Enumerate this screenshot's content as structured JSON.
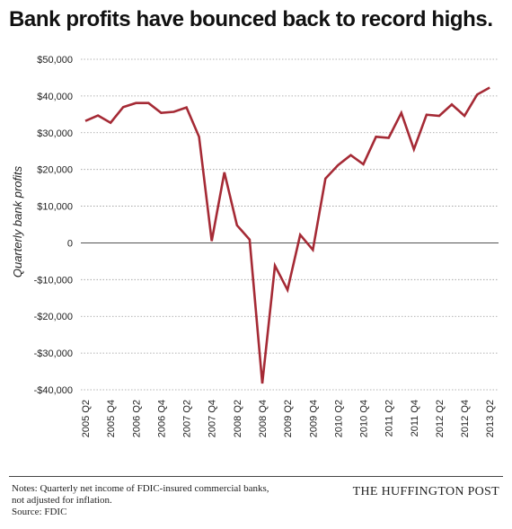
{
  "title": "Bank profits have bounced back to record highs.",
  "chart_data": {
    "type": "line",
    "title": "Bank profits have bounced back to record highs.",
    "ylabel": "Quarterly bank profits",
    "xlabel": "",
    "ylim": [
      -40000,
      50000
    ],
    "y_ticks": [
      50000,
      40000,
      30000,
      20000,
      10000,
      0,
      -10000,
      -20000,
      -30000,
      -40000
    ],
    "y_tick_labels": [
      "$50,000",
      "$40,000",
      "$30,000",
      "$20,000",
      "$10,000",
      "0",
      "-$10,000",
      "-$20,000",
      "-$30,000",
      "-$40,000"
    ],
    "x_tick_labels": [
      "2005 Q2",
      "2005 Q4",
      "2006 Q2",
      "2006 Q4",
      "2007 Q2",
      "2007 Q4",
      "2008 Q2",
      "2008 Q4",
      "2009 Q2",
      "2009 Q4",
      "2010 Q2",
      "2010 Q4",
      "2011 Q2",
      "2011 Q4",
      "2012 Q2",
      "2012 Q4",
      "2013 Q2"
    ],
    "grid": true,
    "line_color": "#a52a35",
    "categories": [
      "2005 Q2",
      "2005 Q3",
      "2005 Q4",
      "2006 Q1",
      "2006 Q2",
      "2006 Q3",
      "2006 Q4",
      "2007 Q1",
      "2007 Q2",
      "2007 Q3",
      "2007 Q4",
      "2008 Q1",
      "2008 Q2",
      "2008 Q3",
      "2008 Q4",
      "2009 Q1",
      "2009 Q2",
      "2009 Q3",
      "2009 Q4",
      "2010 Q1",
      "2010 Q2",
      "2010 Q3",
      "2010 Q4",
      "2011 Q1",
      "2011 Q2",
      "2011 Q3",
      "2011 Q4",
      "2012 Q1",
      "2012 Q2",
      "2012 Q3",
      "2012 Q4",
      "2013 Q1",
      "2013 Q2",
      "2013 Q3"
    ],
    "series": [
      {
        "values": [
          33200,
          34700,
          32700,
          37000,
          38100,
          38100,
          35400,
          35700,
          36900,
          28900,
          500,
          19200,
          4800,
          900,
          -38300,
          -6200,
          -12800,
          2200,
          -1900,
          17500,
          21200,
          23900,
          21400,
          28900,
          28600,
          35400,
          25500,
          34900,
          34600,
          37700,
          34600,
          40400,
          42300,
          null
        ]
      }
    ]
  },
  "notes": {
    "line1": "Notes: Quarterly net income of FDIC-insured commercial banks,",
    "line2": "not adjusted for inflation.",
    "line3": "Source: FDIC"
  },
  "brand": "THE HUFFINGTON POST"
}
